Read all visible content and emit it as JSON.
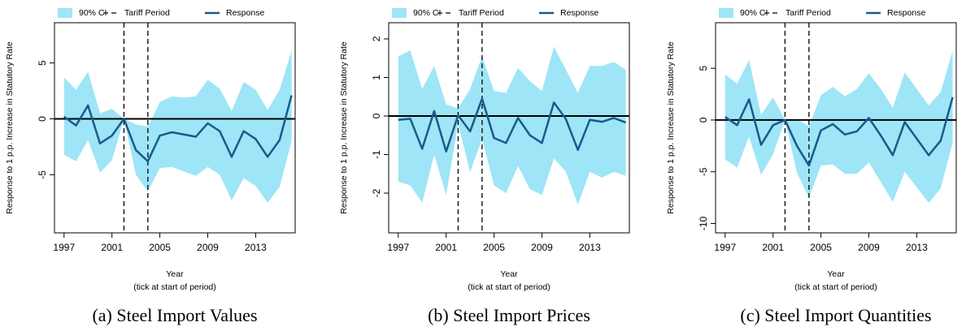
{
  "chart_data": [
    {
      "type": "line",
      "caption": "(a) Steel Import Values",
      "xlabel": "Year",
      "xlabel_note": "(tick at start of period)",
      "ylabel": "Response to 1 p.p. Increase in Statutory Rate",
      "x": [
        1997,
        1998,
        1999,
        2000,
        2001,
        2002,
        2003,
        2004,
        2005,
        2006,
        2007,
        2008,
        2009,
        2010,
        2011,
        2012,
        2013,
        2014,
        2015,
        2016
      ],
      "xlim": [
        1996.2,
        2016.3
      ],
      "xticks": [
        1997,
        2001,
        2005,
        2009,
        2013
      ],
      "ylim": [
        -10.2,
        8.6
      ],
      "yticks": [
        -5,
        0,
        5
      ],
      "hline": 0,
      "vlines": {
        "name": "Tariff Period",
        "values": [
          2002,
          2004
        ]
      },
      "band": {
        "name": "90% CI",
        "color": "#9ee5f7",
        "upper": [
          3.7,
          2.6,
          4.2,
          0.5,
          0.9,
          0,
          -0.5,
          -0.7,
          1.5,
          2.0,
          1.9,
          2.0,
          3.5,
          2.7,
          0.7,
          3.3,
          2.6,
          0.8,
          2.6,
          6.1
        ],
        "lower": [
          -3.2,
          -3.8,
          -1.9,
          -4.8,
          -3.7,
          0,
          -5.0,
          -6.5,
          -4.4,
          -4.3,
          -4.7,
          -5.1,
          -4.3,
          -5.0,
          -7.3,
          -5.3,
          -6.0,
          -7.5,
          -6.1,
          -2.0
        ]
      },
      "series": [
        {
          "name": "Response",
          "color": "#1a5a8a",
          "values": [
            0.2,
            -0.6,
            1.2,
            -2.2,
            -1.5,
            0,
            -2.8,
            -3.8,
            -1.5,
            -1.2,
            -1.4,
            -1.6,
            -0.4,
            -1.1,
            -3.4,
            -1.1,
            -1.8,
            -3.4,
            -1.9,
            2.1
          ]
        }
      ]
    },
    {
      "type": "line",
      "caption": "(b) Steel Import Prices",
      "xlabel": "Year",
      "xlabel_note": "(tick at start of period)",
      "ylabel": "Response to 1 p.p. Increase in Statutory Rate",
      "x": [
        1997,
        1998,
        1999,
        2000,
        2001,
        2002,
        2003,
        2004,
        2005,
        2006,
        2007,
        2008,
        2009,
        2010,
        2011,
        2012,
        2013,
        2014,
        2015,
        2016
      ],
      "xlim": [
        1996.2,
        2016.3
      ],
      "xticks": [
        1997,
        2001,
        2005,
        2009,
        2013
      ],
      "ylim": [
        -3.03,
        2.42
      ],
      "yticks": [
        -2,
        -1,
        0,
        1,
        2
      ],
      "hline": 0,
      "vlines": {
        "name": "Tariff Period",
        "values": [
          2002,
          2004
        ]
      },
      "band": {
        "name": "90% CI",
        "color": "#9ee5f7",
        "upper": [
          1.55,
          1.7,
          0.7,
          1.3,
          0.3,
          0.2,
          0.7,
          1.55,
          0.65,
          0.6,
          1.25,
          0.9,
          0.65,
          1.8,
          1.2,
          0.6,
          1.3,
          1.3,
          1.4,
          1.2
        ],
        "lower": [
          -1.7,
          -1.8,
          -2.25,
          -1.0,
          -2.05,
          -0.2,
          -1.45,
          -0.6,
          -1.8,
          -2.0,
          -1.3,
          -1.9,
          -2.05,
          -1.1,
          -1.45,
          -2.3,
          -1.45,
          -1.6,
          -1.45,
          -1.55
        ]
      },
      "series": [
        {
          "name": "Response",
          "color": "#1a5a8a",
          "values": [
            -0.1,
            -0.07,
            -0.85,
            0.13,
            -0.92,
            0.02,
            -0.4,
            0.45,
            -0.57,
            -0.7,
            -0.05,
            -0.5,
            -0.7,
            0.35,
            -0.08,
            -0.88,
            -0.1,
            -0.15,
            -0.05,
            -0.17
          ]
        }
      ]
    },
    {
      "type": "line",
      "caption": "(c) Steel Import Quantities",
      "xlabel": "Year",
      "xlabel_note": "(tick at start of period)",
      "ylabel": "Response to 1 p.p. Increase in Statutory Rate",
      "x": [
        1997,
        1998,
        1999,
        2000,
        2001,
        2002,
        2003,
        2004,
        2005,
        2006,
        2007,
        2008,
        2009,
        2010,
        2011,
        2012,
        2013,
        2014,
        2015,
        2016
      ],
      "xlim": [
        1996.2,
        2016.3
      ],
      "xticks": [
        1997,
        2001,
        2005,
        2009,
        2013
      ],
      "ylim": [
        -10.9,
        9.4
      ],
      "yticks": [
        -10,
        -5,
        0,
        5
      ],
      "hline": 0,
      "vlines": {
        "name": "Tariff Period",
        "values": [
          2002,
          2004
        ]
      },
      "band": {
        "name": "90% CI",
        "color": "#9ee5f7",
        "upper": [
          4.4,
          3.5,
          5.8,
          0.5,
          2.2,
          0,
          0.1,
          -0.6,
          2.4,
          3.2,
          2.3,
          3.0,
          4.5,
          3.0,
          1.2,
          4.6,
          3.0,
          1.4,
          2.7,
          6.7
        ],
        "lower": [
          -3.8,
          -4.6,
          -1.6,
          -5.3,
          -3.3,
          0,
          -5.1,
          -7.5,
          -4.4,
          -4.3,
          -5.2,
          -5.2,
          -4.1,
          -6.0,
          -7.9,
          -5.0,
          -6.5,
          -8.0,
          -6.6,
          -2.2
        ]
      },
      "series": [
        {
          "name": "Response",
          "color": "#1a5a8a",
          "values": [
            0.3,
            -0.5,
            2.0,
            -2.4,
            -0.5,
            0,
            -2.5,
            -4.4,
            -1.0,
            -0.4,
            -1.4,
            -1.1,
            0.2,
            -1.5,
            -3.4,
            -0.2,
            -1.8,
            -3.4,
            -2.0,
            2.2
          ]
        }
      ]
    }
  ]
}
